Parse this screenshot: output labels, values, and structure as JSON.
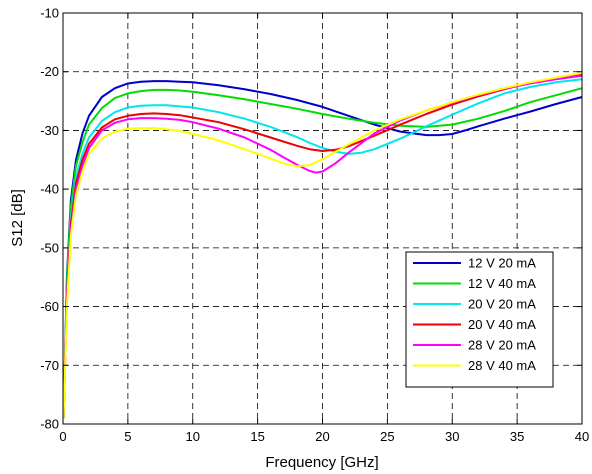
{
  "chart_data": {
    "type": "line",
    "title": "",
    "xlabel": "Frequency [GHz]",
    "ylabel": "S12 [dB]",
    "xlim": [
      0,
      40
    ],
    "ylim": [
      -80,
      -10
    ],
    "xticks": [
      0,
      5,
      10,
      15,
      20,
      25,
      30,
      35,
      40
    ],
    "yticks": [
      -80,
      -70,
      -60,
      -50,
      -40,
      -30,
      -20,
      -10
    ],
    "grid": "dashed",
    "legend_position": "lower-right",
    "series": [
      {
        "name": "12 V 20 mA",
        "color": "#0000cc",
        "x": [
          0.05,
          0.3,
          0.6,
          1.0,
          1.5,
          2.0,
          3.0,
          4.0,
          5.0,
          6.0,
          7.0,
          8.0,
          9.0,
          10.0,
          12.0,
          14.0,
          16.0,
          18.0,
          20.0,
          22.0,
          24.0,
          26.0,
          28.0,
          29.0,
          30.0,
          31.0,
          32.0,
          34.0,
          36.0,
          38.0,
          40.0
        ],
        "y": [
          -79,
          -55,
          -42,
          -35,
          -30.5,
          -27.5,
          -24.3,
          -22.8,
          -22,
          -21.7,
          -21.6,
          -21.6,
          -21.7,
          -21.8,
          -22.3,
          -23.0,
          -23.8,
          -24.8,
          -26.0,
          -27.5,
          -29.0,
          -30.2,
          -30.8,
          -30.8,
          -30.6,
          -30.0,
          -29.3,
          -28.0,
          -26.8,
          -25.5,
          -24.3
        ]
      },
      {
        "name": "12 V 40 mA",
        "color": "#00dd00",
        "x": [
          0.05,
          0.3,
          0.6,
          1.0,
          1.5,
          2.0,
          3.0,
          4.0,
          5.0,
          6.0,
          7.0,
          8.0,
          9.0,
          10.0,
          12.0,
          14.0,
          16.0,
          18.0,
          20.0,
          22.0,
          24.0,
          26.0,
          28.0,
          30.0,
          32.0,
          34.0,
          36.0,
          38.0,
          40.0
        ],
        "y": [
          -79,
          -56,
          -43,
          -36,
          -32,
          -29,
          -26.2,
          -24.5,
          -23.7,
          -23.3,
          -23.1,
          -23.1,
          -23.2,
          -23.4,
          -24.0,
          -24.7,
          -25.5,
          -26.3,
          -27.2,
          -28.0,
          -28.7,
          -29.2,
          -29.4,
          -29.0,
          -28.0,
          -26.7,
          -25.2,
          -24.0,
          -22.8
        ]
      },
      {
        "name": "20 V 20 mA",
        "color": "#00e5ee",
        "x": [
          0.05,
          0.3,
          0.6,
          1.0,
          1.5,
          2.0,
          3.0,
          4.0,
          5.0,
          6.0,
          7.0,
          8.0,
          9.0,
          10.0,
          12.0,
          14.0,
          16.0,
          18.0,
          19.0,
          20.0,
          21.0,
          22.0,
          23.0,
          24.0,
          26.0,
          28.0,
          30.0,
          32.0,
          34.0,
          36.0,
          38.0,
          40.0
        ],
        "y": [
          -79,
          -57,
          -45,
          -38,
          -34,
          -31.2,
          -28.4,
          -26.9,
          -26.1,
          -25.8,
          -25.7,
          -25.7,
          -25.9,
          -26.1,
          -26.9,
          -28.0,
          -29.4,
          -31.1,
          -32.1,
          -33.0,
          -33.6,
          -34.0,
          -33.8,
          -33.2,
          -31.4,
          -29.3,
          -27.3,
          -25.4,
          -23.7,
          -22.6,
          -21.8,
          -21.3
        ]
      },
      {
        "name": "20 V 40 mA",
        "color": "#ee0000",
        "x": [
          0.05,
          0.3,
          0.6,
          1.0,
          1.5,
          2.0,
          3.0,
          4.0,
          5.0,
          6.0,
          7.0,
          8.0,
          9.0,
          10.0,
          12.0,
          14.0,
          16.0,
          18.0,
          19.0,
          20.0,
          21.0,
          22.0,
          24.0,
          26.0,
          28.0,
          30.0,
          32.0,
          34.0,
          36.0,
          38.0,
          40.0
        ],
        "y": [
          -79,
          -58,
          -46,
          -39,
          -35,
          -32.3,
          -29.5,
          -28.1,
          -27.5,
          -27.2,
          -27.1,
          -27.2,
          -27.4,
          -27.8,
          -28.6,
          -29.8,
          -31.2,
          -32.6,
          -33.2,
          -33.5,
          -33.3,
          -32.7,
          -30.9,
          -29.0,
          -27.2,
          -25.6,
          -24.2,
          -23.0,
          -21.9,
          -21.1,
          -20.5
        ]
      },
      {
        "name": "28 V 20 mA",
        "color": "#ff00ff",
        "x": [
          0.05,
          0.3,
          0.6,
          1.0,
          1.5,
          2.0,
          3.0,
          4.0,
          5.0,
          6.0,
          7.0,
          8.0,
          9.0,
          10.0,
          12.0,
          14.0,
          16.0,
          17.0,
          18.0,
          19.0,
          19.5,
          20.0,
          21.0,
          22.0,
          24.0,
          26.0,
          28.0,
          30.0,
          32.0,
          34.0,
          36.0,
          38.0,
          40.0
        ],
        "y": [
          -79,
          -59,
          -47,
          -40,
          -36,
          -33.0,
          -30.0,
          -28.7,
          -28.1,
          -27.9,
          -27.9,
          -28.0,
          -28.2,
          -28.6,
          -29.7,
          -31.2,
          -33.3,
          -34.6,
          -35.8,
          -36.9,
          -37.2,
          -37.0,
          -35.6,
          -33.8,
          -30.5,
          -28.3,
          -26.6,
          -25.3,
          -24.0,
          -22.9,
          -22.0,
          -21.3,
          -20.7
        ]
      },
      {
        "name": "28 V 40 mA",
        "color": "#ffff00",
        "x": [
          0.05,
          0.3,
          0.6,
          1.0,
          1.5,
          2.0,
          3.0,
          4.0,
          5.0,
          6.0,
          7.0,
          8.0,
          9.0,
          10.0,
          12.0,
          14.0,
          16.0,
          17.0,
          18.0,
          19.0,
          20.0,
          22.0,
          24.0,
          26.0,
          28.0,
          30.0,
          32.0,
          34.0,
          36.0,
          38.0,
          40.0
        ],
        "y": [
          -79,
          -60,
          -48,
          -41,
          -37,
          -34.0,
          -31.4,
          -30.2,
          -29.7,
          -29.6,
          -29.6,
          -29.8,
          -30.1,
          -30.6,
          -31.7,
          -33.2,
          -34.8,
          -35.6,
          -36.1,
          -35.9,
          -34.9,
          -32.4,
          -30.0,
          -28.1,
          -26.6,
          -25.2,
          -23.9,
          -22.8,
          -21.8,
          -21.0,
          -20.2
        ]
      }
    ]
  }
}
